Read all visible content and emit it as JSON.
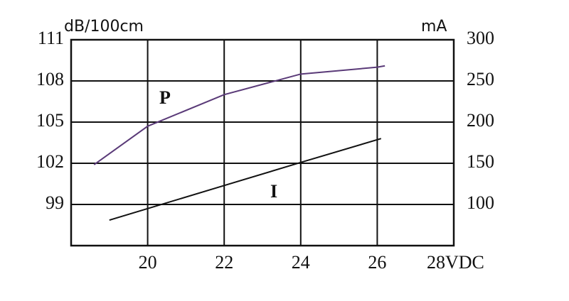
{
  "chart_data": {
    "type": "line",
    "ylabel": "dB/100cm",
    "y2label": "mA",
    "xlim": [
      18,
      28
    ],
    "ylim": [
      96,
      111
    ],
    "y2lim": [
      50,
      300
    ],
    "xticks": [
      20,
      22,
      24,
      26,
      {
        "value": 28,
        "label": "28VDC"
      }
    ],
    "yticks": [
      99,
      102,
      105,
      108,
      111
    ],
    "y2ticks": [
      100,
      150,
      200,
      250,
      300
    ],
    "grid": true,
    "series": [
      {
        "name": "P",
        "color": "#5a3a78",
        "x": [
          18.6,
          20,
          22,
          24,
          26,
          26.2
        ],
        "values": [
          101.9,
          104.7,
          107.0,
          108.5,
          109.0,
          109.1
        ]
      },
      {
        "name": "I",
        "color": "#111111",
        "axis": "y2",
        "x": [
          19,
          20,
          22,
          24,
          26.1
        ],
        "values": [
          81,
          95,
          123,
          151,
          180
        ]
      }
    ]
  }
}
